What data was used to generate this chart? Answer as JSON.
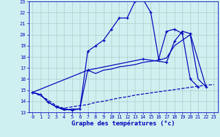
{
  "title": "Graphe des températures (°c)",
  "bg_color": "#cff0f0",
  "line_color": "#0000bb",
  "grid_color": "#b0c8c8",
  "x_values": [
    0,
    1,
    2,
    3,
    4,
    5,
    6,
    7,
    8,
    9,
    10,
    11,
    12,
    13,
    14,
    15,
    16,
    17,
    18,
    19,
    20,
    21,
    22,
    23
  ],
  "series": [
    {
      "data": [
        14.8,
        14.6,
        13.9,
        13.5,
        13.3,
        13.2,
        13.3,
        18.5,
        19.0,
        19.5,
        20.5,
        21.5,
        21.5,
        23.0,
        23.2,
        22.0,
        17.8,
        20.3,
        20.5,
        20.1,
        16.0,
        15.3,
        null,
        null
      ],
      "marker": "+",
      "linestyle": "-",
      "linewidth": 0.9
    },
    {
      "data": [
        14.8,
        null,
        null,
        null,
        null,
        null,
        null,
        16.8,
        null,
        null,
        null,
        null,
        null,
        null,
        17.8,
        null,
        null,
        17.5,
        19.4,
        20.3,
        20.1,
        null,
        15.3,
        null
      ],
      "marker": "+",
      "linestyle": "-",
      "linewidth": 0.9
    },
    {
      "data": [
        14.8,
        14.6,
        13.9,
        13.5,
        13.2,
        13.3,
        13.3,
        16.8,
        16.5,
        16.8,
        16.9,
        17.1,
        17.2,
        17.3,
        17.5,
        17.6,
        17.7,
        17.9,
        19.0,
        19.5,
        20.0,
        16.0,
        15.3,
        null
      ],
      "marker": null,
      "linestyle": "-",
      "linewidth": 0.9
    },
    {
      "data": [
        14.8,
        14.5,
        14.1,
        13.6,
        13.35,
        13.5,
        13.6,
        13.7,
        13.9,
        14.0,
        14.15,
        14.3,
        14.4,
        14.55,
        14.65,
        14.75,
        14.85,
        14.95,
        15.05,
        15.15,
        15.25,
        15.35,
        15.45,
        15.5
      ],
      "marker": null,
      "linestyle": "--",
      "linewidth": 0.9
    }
  ],
  "ylim": [
    13,
    23
  ],
  "xlim": [
    -0.5,
    23.5
  ],
  "yticks": [
    13,
    14,
    15,
    16,
    17,
    18,
    19,
    20,
    21,
    22,
    23
  ],
  "xticks": [
    0,
    1,
    2,
    3,
    4,
    5,
    6,
    7,
    8,
    9,
    10,
    11,
    12,
    13,
    14,
    15,
    16,
    17,
    18,
    19,
    20,
    21,
    22,
    23
  ],
  "ylabel_fontsize": 5.5,
  "xlabel_fontsize": 6.5,
  "tick_fontsize": 5.0
}
